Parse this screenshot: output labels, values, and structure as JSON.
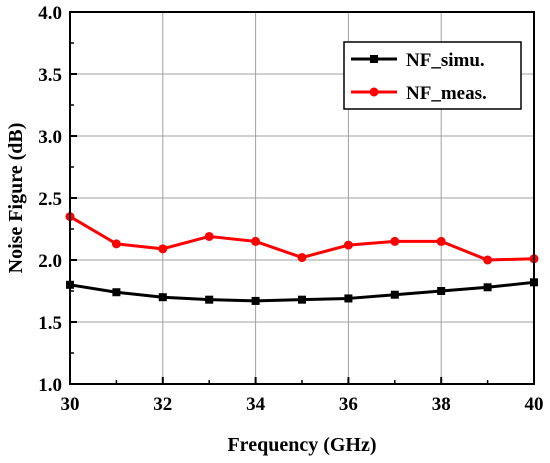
{
  "chart_data": {
    "type": "line",
    "title": "",
    "xlabel": "Frequency (GHz)",
    "ylabel": "Noise Figure (dB)",
    "xlim": [
      30,
      40
    ],
    "ylim": [
      1.0,
      4.0
    ],
    "x_ticks": [
      "30",
      "32",
      "34",
      "36",
      "38",
      "40"
    ],
    "y_ticks": [
      "1.0",
      "1.5",
      "2.0",
      "2.5",
      "3.0",
      "3.5",
      "4.0"
    ],
    "grid": true,
    "legend_position": "top-right",
    "x": [
      30,
      31,
      32,
      33,
      34,
      35,
      36,
      37,
      38,
      39,
      40
    ],
    "series": [
      {
        "name": "NF_simu.",
        "color": "#000000",
        "marker": "square",
        "values": [
          1.8,
          1.74,
          1.7,
          1.68,
          1.67,
          1.68,
          1.69,
          1.72,
          1.75,
          1.78,
          1.82
        ]
      },
      {
        "name": "NF_meas.",
        "color": "#ff0000",
        "marker": "circle",
        "values": [
          2.35,
          2.13,
          2.09,
          2.19,
          2.15,
          2.02,
          2.12,
          2.15,
          2.15,
          2.0,
          2.01
        ]
      }
    ]
  }
}
